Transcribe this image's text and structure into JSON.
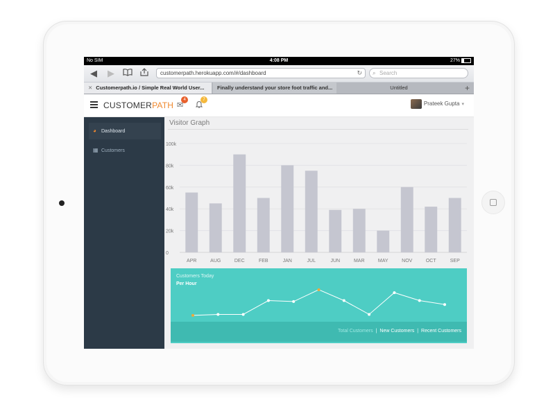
{
  "device": {
    "name": "iPad"
  },
  "status_bar": {
    "carrier": "No SIM",
    "time": "4:08 PM",
    "battery": "27%"
  },
  "browser": {
    "url": "customerpath.herokuapp.com/#/dashboard",
    "search_placeholder": "Search",
    "tabs": [
      {
        "label": "Customerpath.io / Simple Real World User..."
      },
      {
        "label": "Finally understand your store foot traffic and..."
      },
      {
        "label": "Untitled"
      }
    ]
  },
  "header": {
    "logo_part1": "CUSTOMER",
    "logo_part2": "PATH",
    "mail_badge": "4",
    "bell_badge": "7",
    "user_name": "Prateek Gupta"
  },
  "sidebar": {
    "items": [
      {
        "label": "Dashboard",
        "icon": "dashboard-icon"
      },
      {
        "label": "Customers",
        "icon": "grid-icon"
      }
    ]
  },
  "visitor_graph": {
    "title": "Visitor Graph"
  },
  "customers_today": {
    "title": "Customers Today",
    "subtitle": "Per Hour",
    "links": [
      "Total Customers",
      "New Customers",
      "Recent Customers"
    ]
  },
  "colors": {
    "accent": "#f0882d",
    "sidebar": "#2c3a47",
    "bar": "#c5c6d0",
    "teal": "#4ecdc4"
  },
  "chart_data": [
    {
      "type": "bar",
      "categories": [
        "APR",
        "AUG",
        "DEC",
        "FEB",
        "JAN",
        "JUL",
        "JUN",
        "MAR",
        "MAY",
        "NOV",
        "OCT",
        "SEP"
      ],
      "values": [
        55000,
        45000,
        90000,
        50000,
        80000,
        75000,
        39000,
        40000,
        20000,
        60000,
        42000,
        50000
      ],
      "yticks": [
        "0",
        "20k",
        "40k",
        "60k",
        "80k",
        "100k"
      ],
      "ylim": [
        0,
        100000
      ],
      "grid": true
    },
    {
      "type": "line",
      "values": [
        5,
        6,
        6,
        20,
        19,
        31,
        20,
        6,
        28,
        20,
        16
      ],
      "highlighted": [
        0,
        5
      ],
      "ylim": [
        0,
        40
      ]
    }
  ]
}
